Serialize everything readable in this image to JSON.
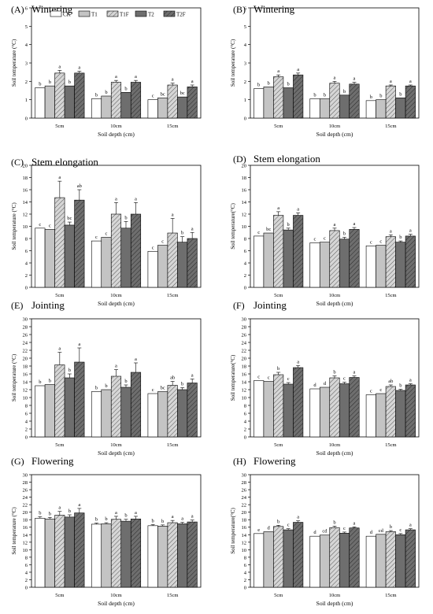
{
  "legend": [
    "CK",
    "T1",
    "T1F",
    "T2",
    "T2F"
  ],
  "panels": [
    {
      "letter": "(A)",
      "stage": "Wintering",
      "ylabel": "Soil temperature (°C)",
      "xlabel": "Soil depth (cm)",
      "show_legend": true
    },
    {
      "letter": "(B)",
      "stage": "Wintering",
      "ylabel": "Soil temperature (°C)",
      "xlabel": "Soil depth (cm)",
      "show_legend": false
    },
    {
      "letter": "(C)",
      "stage": "Stem elongation",
      "ylabel": "Soil temperature (°C)",
      "xlabel": "Soil depth (cm)",
      "show_legend": false
    },
    {
      "letter": "(D)",
      "stage": "Stem elongation",
      "ylabel": "Soil temperature(°C)",
      "xlabel": "Soil depth (cm)",
      "show_legend": false
    },
    {
      "letter": "(E)",
      "stage": "Jointing",
      "ylabel": "Soil temperature (°C)",
      "xlabel": "Soil depth (cm)",
      "show_legend": false
    },
    {
      "letter": "(F)",
      "stage": "Jointing",
      "ylabel": "Soil temperature(°C)",
      "xlabel": "Soil depth (cm)",
      "show_legend": false
    },
    {
      "letter": "(G)",
      "stage": "Flowering",
      "ylabel": "Soil temperature (°C)",
      "xlabel": "Soil depth (cm)",
      "show_legend": false
    },
    {
      "letter": "(H)",
      "stage": "Flowering",
      "ylabel": "Soil temperature(°C)",
      "xlabel": "Soil depth (cm)",
      "show_legend": false
    }
  ],
  "chart_data": [
    {
      "type": "bar",
      "categories": [
        "5cm",
        "10cm",
        "15cm"
      ],
      "ylim": [
        0,
        6
      ],
      "yticks": [
        0,
        1,
        2,
        3,
        4,
        5,
        6
      ],
      "series": [
        {
          "name": "CK",
          "values": [
            1.65,
            1.05,
            1.0
          ],
          "err": [
            0,
            0,
            0
          ],
          "letters": [
            "b",
            "b",
            "c"
          ]
        },
        {
          "name": "T1",
          "values": [
            1.75,
            1.2,
            1.1
          ],
          "err": [
            0,
            0,
            0
          ],
          "letters": [
            "b",
            "b",
            "bc"
          ]
        },
        {
          "name": "T1F",
          "values": [
            2.45,
            1.95,
            1.8
          ],
          "err": [
            0.15,
            0.1,
            0.1
          ],
          "letters": [
            "a",
            "a",
            "a"
          ]
        },
        {
          "name": "T2",
          "values": [
            1.75,
            1.4,
            1.15
          ],
          "err": [
            0,
            0,
            0
          ],
          "letters": [
            "b",
            "b",
            "bc"
          ]
        },
        {
          "name": "T2F",
          "values": [
            2.45,
            1.95,
            1.7
          ],
          "err": [
            0.1,
            0.1,
            0.1
          ],
          "letters": [
            "a",
            "a",
            "a"
          ]
        }
      ]
    },
    {
      "type": "bar",
      "categories": [
        "5cm",
        "10cm",
        "15cm"
      ],
      "ylim": [
        0,
        6
      ],
      "yticks": [
        0,
        1,
        2,
        3,
        4,
        5,
        6
      ],
      "series": [
        {
          "name": "CK",
          "values": [
            1.6,
            1.05,
            0.95
          ],
          "err": [
            0,
            0,
            0
          ],
          "letters": [
            "b",
            "b",
            "b"
          ]
        },
        {
          "name": "T1",
          "values": [
            1.7,
            1.05,
            1.0
          ],
          "err": [
            0,
            0,
            0
          ],
          "letters": [
            "b",
            "b",
            "b"
          ]
        },
        {
          "name": "T1F",
          "values": [
            2.25,
            1.9,
            1.75
          ],
          "err": [
            0.1,
            0.1,
            0.05
          ],
          "letters": [
            "a",
            "a",
            "a"
          ]
        },
        {
          "name": "T2",
          "values": [
            1.65,
            1.25,
            1.1
          ],
          "err": [
            0,
            0,
            0
          ],
          "letters": [
            "b",
            "b",
            "b"
          ]
        },
        {
          "name": "T2F",
          "values": [
            2.35,
            1.85,
            1.75
          ],
          "err": [
            0.1,
            0.1,
            0.05
          ],
          "letters": [
            "a",
            "a",
            "a"
          ]
        }
      ]
    },
    {
      "type": "bar",
      "categories": [
        "5cm",
        "10cm",
        "15cm"
      ],
      "ylim": [
        0,
        20
      ],
      "yticks": [
        0,
        2,
        4,
        6,
        8,
        10,
        12,
        14,
        16,
        18,
        20
      ],
      "series": [
        {
          "name": "CK",
          "values": [
            9.7,
            7.6,
            5.9
          ],
          "err": [
            0,
            0,
            0
          ],
          "letters": [
            "c",
            "c",
            "c"
          ]
        },
        {
          "name": "T1",
          "values": [
            9.5,
            8.2,
            6.9
          ],
          "err": [
            0,
            0,
            0
          ],
          "letters": [
            "c",
            "c",
            "c"
          ]
        },
        {
          "name": "T1F",
          "values": [
            14.7,
            12.0,
            8.9
          ],
          "err": [
            2.7,
            1.9,
            2.4
          ],
          "letters": [
            "a",
            "a",
            "a"
          ]
        },
        {
          "name": "T2",
          "values": [
            10.2,
            9.7,
            7.4
          ],
          "err": [
            0.5,
            1.1,
            0.9
          ],
          "letters": [
            "bc",
            "b",
            "b"
          ]
        },
        {
          "name": "T2F",
          "values": [
            14.3,
            12.0,
            8.0
          ],
          "err": [
            1.7,
            1.9,
            1.0
          ],
          "letters": [
            "ab",
            "a",
            "a"
          ]
        }
      ]
    },
    {
      "type": "bar",
      "categories": [
        "5cm",
        "10cm",
        "15cm"
      ],
      "ylim": [
        0,
        20
      ],
      "yticks": [
        0,
        2,
        4,
        6,
        8,
        10,
        12,
        14,
        16,
        18,
        20
      ],
      "series": [
        {
          "name": "CK",
          "values": [
            8.4,
            7.3,
            6.8
          ],
          "err": [
            0,
            0,
            0
          ],
          "letters": [
            "c",
            "c",
            "c"
          ]
        },
        {
          "name": "T1",
          "values": [
            8.9,
            7.4,
            6.9
          ],
          "err": [
            0,
            0,
            0
          ],
          "letters": [
            "bc",
            "c",
            "c"
          ]
        },
        {
          "name": "T1F",
          "values": [
            11.8,
            9.3,
            8.3
          ],
          "err": [
            0.6,
            0.4,
            0.3
          ],
          "letters": [
            "a",
            "a",
            "a"
          ]
        },
        {
          "name": "T2",
          "values": [
            9.4,
            7.9,
            7.4
          ],
          "err": [
            0.3,
            0.3,
            0.2
          ],
          "letters": [
            "b",
            "b",
            "b"
          ]
        },
        {
          "name": "T2F",
          "values": [
            11.8,
            9.5,
            8.4
          ],
          "err": [
            0.4,
            0.3,
            0.3
          ],
          "letters": [
            "a",
            "a",
            "a"
          ]
        }
      ]
    },
    {
      "type": "bar",
      "categories": [
        "5cm",
        "10cm",
        "15cm"
      ],
      "ylim": [
        0,
        30
      ],
      "yticks": [
        0,
        2,
        4,
        6,
        8,
        10,
        12,
        14,
        16,
        18,
        20,
        22,
        24,
        26,
        28,
        30
      ],
      "series": [
        {
          "name": "CK",
          "values": [
            13.0,
            11.5,
            11.0
          ],
          "err": [
            0,
            0,
            0
          ],
          "letters": [
            "b",
            "b",
            "c"
          ]
        },
        {
          "name": "T1",
          "values": [
            13.3,
            12.0,
            11.5
          ],
          "err": [
            0,
            0,
            0
          ],
          "letters": [
            "b",
            "b",
            "bc"
          ]
        },
        {
          "name": "T1F",
          "values": [
            18.3,
            15.4,
            13.1
          ],
          "err": [
            3.2,
            1.7,
            1.0
          ],
          "letters": [
            "a",
            "a",
            "ab"
          ]
        },
        {
          "name": "T2",
          "values": [
            15.0,
            12.6,
            12.0
          ],
          "err": [
            1.0,
            0.6,
            0.5
          ],
          "letters": [
            "b",
            "b",
            "b"
          ]
        },
        {
          "name": "T2F",
          "values": [
            19.0,
            16.4,
            13.7
          ],
          "err": [
            3.6,
            2.4,
            1.0
          ],
          "letters": [
            "a",
            "a",
            "a"
          ]
        }
      ]
    },
    {
      "type": "bar",
      "categories": [
        "5cm",
        "10cm",
        "15cm"
      ],
      "ylim": [
        0,
        30
      ],
      "yticks": [
        0,
        2,
        4,
        6,
        8,
        10,
        12,
        14,
        16,
        18,
        20,
        22,
        24,
        26,
        28,
        30
      ],
      "series": [
        {
          "name": "CK",
          "values": [
            14.3,
            12.2,
            10.7
          ],
          "err": [
            0,
            0,
            0
          ],
          "letters": [
            "c",
            "d",
            "c"
          ]
        },
        {
          "name": "T1",
          "values": [
            14.1,
            12.6,
            11.0
          ],
          "err": [
            0,
            0,
            0
          ],
          "letters": [
            "c",
            "d",
            "c"
          ]
        },
        {
          "name": "T1F",
          "values": [
            15.8,
            15.0,
            12.8
          ],
          "err": [
            0.6,
            0.5,
            0.4
          ],
          "letters": [
            "b",
            "b",
            "ab"
          ]
        },
        {
          "name": "T2",
          "values": [
            13.4,
            13.5,
            11.8
          ],
          "err": [
            0.4,
            0.4,
            0.3
          ],
          "letters": [
            "c",
            "c",
            "b"
          ]
        },
        {
          "name": "T2F",
          "values": [
            17.6,
            15.1,
            13.2
          ],
          "err": [
            0.5,
            0.4,
            0.3
          ],
          "letters": [
            "a",
            "a",
            "a"
          ]
        }
      ]
    },
    {
      "type": "bar",
      "categories": [
        "5cm",
        "10cm",
        "15cm"
      ],
      "ylim": [
        0,
        30
      ],
      "yticks": [
        0,
        2,
        4,
        6,
        8,
        10,
        12,
        14,
        16,
        18,
        20,
        22,
        24,
        26,
        28,
        30
      ],
      "series": [
        {
          "name": "CK",
          "values": [
            18.4,
            16.8,
            16.4
          ],
          "err": [
            0.4,
            0.3,
            0.3
          ],
          "letters": [
            "b",
            "b",
            "b"
          ]
        },
        {
          "name": "T1",
          "values": [
            18.2,
            16.9,
            16.3
          ],
          "err": [
            0.4,
            0.3,
            0.3
          ],
          "letters": [
            "b",
            "b",
            "b"
          ]
        },
        {
          "name": "T1F",
          "values": [
            19.2,
            18.1,
            17.2
          ],
          "err": [
            1.0,
            0.8,
            0.6
          ],
          "letters": [
            "a",
            "a",
            "a"
          ]
        },
        {
          "name": "T2",
          "values": [
            18.7,
            17.6,
            16.9
          ],
          "err": [
            0.6,
            0.5,
            0.4
          ],
          "letters": [
            "b",
            "b",
            "a"
          ]
        },
        {
          "name": "T2F",
          "values": [
            19.8,
            18.2,
            17.4
          ],
          "err": [
            1.2,
            0.7,
            0.5
          ],
          "letters": [
            "a",
            "a",
            "a"
          ]
        }
      ]
    },
    {
      "type": "bar",
      "categories": [
        "5cm",
        "10cm",
        "15cm"
      ],
      "ylim": [
        0,
        30
      ],
      "yticks": [
        0,
        2,
        4,
        6,
        8,
        10,
        12,
        14,
        16,
        18,
        20,
        22,
        24,
        26,
        28,
        30
      ],
      "series": [
        {
          "name": "CK",
          "values": [
            14.3,
            13.6,
            13.6
          ],
          "err": [
            0,
            0,
            0
          ],
          "letters": [
            "e",
            "d",
            "d"
          ]
        },
        {
          "name": "T1",
          "values": [
            14.8,
            13.9,
            14.1
          ],
          "err": [
            0,
            0,
            0
          ],
          "letters": [
            "d",
            "cd",
            "cd"
          ]
        },
        {
          "name": "T1F",
          "values": [
            16.2,
            15.9,
            14.8
          ],
          "err": [
            0.3,
            0.4,
            0.3
          ],
          "letters": [
            "b",
            "b",
            "b"
          ]
        },
        {
          "name": "T2",
          "values": [
            15.3,
            14.4,
            14.0
          ],
          "err": [
            0.3,
            0.3,
            0.3
          ],
          "letters": [
            "c",
            "c",
            "c"
          ]
        },
        {
          "name": "T2F",
          "values": [
            17.3,
            15.8,
            15.3
          ],
          "err": [
            0.4,
            0.3,
            0.3
          ],
          "letters": [
            "a",
            "a",
            "a"
          ]
        }
      ]
    }
  ]
}
